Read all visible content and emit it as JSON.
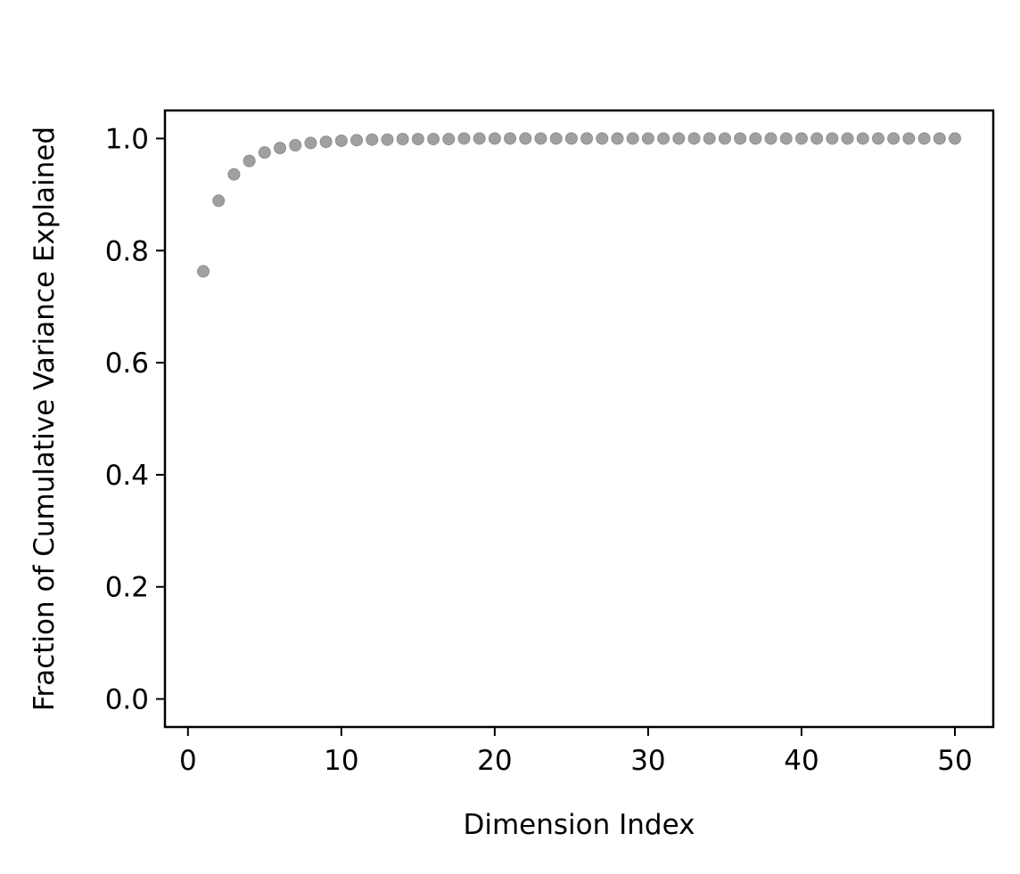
{
  "chart_data": {
    "type": "scatter",
    "title": "",
    "xlabel": "Dimension Index",
    "ylabel": "Fraction of Cumulative Variance Explained",
    "xlim": [
      -1.5,
      52.5
    ],
    "ylim": [
      -0.05,
      1.05
    ],
    "x_ticks": [
      0,
      10,
      20,
      30,
      40,
      50
    ],
    "x_tick_labels": [
      "0",
      "10",
      "20",
      "30",
      "40",
      "50"
    ],
    "y_ticks": [
      0.0,
      0.2,
      0.4,
      0.6,
      0.8,
      1.0
    ],
    "y_tick_labels": [
      "0.0",
      "0.2",
      "0.4",
      "0.6",
      "0.8",
      "1.0"
    ],
    "grid": false,
    "legend": "none",
    "marker_color": "#a0a0a0",
    "series": [
      {
        "x": [
          1,
          2,
          3,
          4,
          5,
          6,
          7,
          8,
          9,
          10,
          11,
          12,
          13,
          14,
          15,
          16,
          17,
          18,
          19,
          20,
          21,
          22,
          23,
          24,
          25,
          26,
          27,
          28,
          29,
          30,
          31,
          32,
          33,
          34,
          35,
          36,
          37,
          38,
          39,
          40,
          41,
          42,
          43,
          44,
          45,
          46,
          47,
          48,
          49,
          50
        ],
        "values": [
          0.763,
          0.889,
          0.936,
          0.96,
          0.975,
          0.983,
          0.988,
          0.992,
          0.994,
          0.996,
          0.997,
          0.998,
          0.998,
          0.999,
          0.999,
          0.999,
          0.999,
          1.0,
          1.0,
          1.0,
          1.0,
          1.0,
          1.0,
          1.0,
          1.0,
          1.0,
          1.0,
          1.0,
          1.0,
          1.0,
          1.0,
          1.0,
          1.0,
          1.0,
          1.0,
          1.0,
          1.0,
          1.0,
          1.0,
          1.0,
          1.0,
          1.0,
          1.0,
          1.0,
          1.0,
          1.0,
          1.0,
          1.0,
          1.0,
          1.0
        ]
      }
    ]
  }
}
